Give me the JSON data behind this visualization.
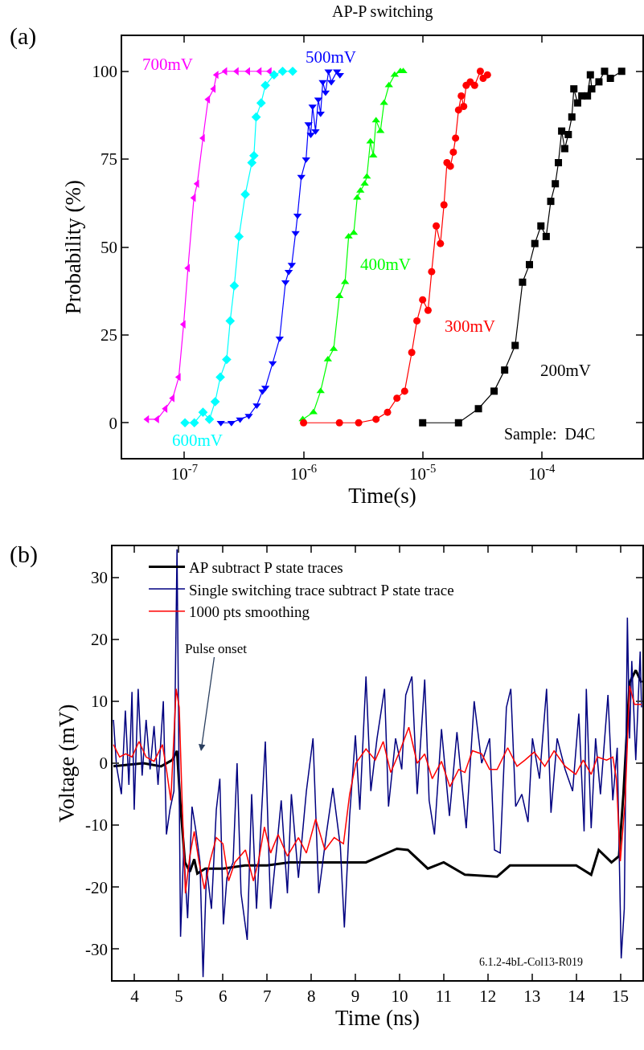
{
  "chart_data": [
    {
      "type": "line",
      "title": "AP-P switching",
      "xlabel": "Time(s)",
      "ylabel": "Probability (%)",
      "log": "x",
      "xlim": [
        3e-08,
        0.0007
      ],
      "ylim": [
        -10,
        110
      ],
      "xticks": [
        {
          "value": 1e-07,
          "label": "10$^{-7}$"
        },
        {
          "value": 1e-06,
          "label": "10$^{-6}$"
        },
        {
          "value": 1e-05,
          "label": "10$^{-5}$"
        },
        {
          "value": 0.0001,
          "label": "10$^{-4}$"
        }
      ],
      "yticks": [
        0,
        25,
        50,
        75,
        100
      ],
      "grid": false,
      "legend": false,
      "annotations": [
        "(a)",
        "Sample:  D4C"
      ],
      "series": [
        {
          "name": "700mV",
          "color": "#ff00ff",
          "marker": "triangle-left",
          "x": [
            4.86e-08,
            5.9e-08,
            6.93e-08,
            7.96e-08,
            8.96e-08,
            9.84e-08,
            1.07e-07,
            1.2e-07,
            1.28e-07,
            1.43e-07,
            1.58e-07,
            1.76e-07,
            1.86e-07,
            2.2e-07,
            2.75e-07,
            3.43e-07,
            4.28e-07,
            5.2e-07
          ],
          "values": [
            1,
            1,
            4,
            7,
            13,
            28,
            44,
            64,
            68,
            81,
            92,
            95,
            99,
            100,
            100,
            100,
            100,
            100
          ]
        },
        {
          "name": "600mV",
          "color": "#00ffff",
          "marker": "diamond",
          "x": [
            1.01e-07,
            1.21e-07,
            1.43e-07,
            1.62e-07,
            1.81e-07,
            2e-07,
            2.26e-07,
            2.42e-07,
            2.62e-07,
            2.87e-07,
            3.24e-07,
            3.68e-07,
            3.83e-07,
            4e-07,
            4.4e-07,
            4.78e-07,
            5.65e-07,
            6.67e-07,
            8.1e-07
          ],
          "values": [
            0,
            0,
            3,
            1,
            6,
            13,
            18,
            29,
            39,
            53,
            65,
            74,
            76,
            87,
            91,
            96,
            99,
            100,
            100
          ]
        },
        {
          "name": "500mV",
          "color": "#0000ff",
          "marker": "triangle-down",
          "x": [
            2.02e-07,
            2.48e-07,
            2.93e-07,
            3.47e-07,
            4.05e-07,
            4.52e-07,
            4.78e-07,
            5.5e-07,
            6.3e-07,
            7.05e-07,
            7.5e-07,
            7.96e-07,
            8.57e-07,
            8.9e-07,
            9.57e-07,
            1.05e-06,
            1.1e-06,
            1.15e-06,
            1.19e-06,
            1.26e-06,
            1.33e-06,
            1.39e-06,
            1.45e-06,
            1.53e-06,
            1.62e-06,
            1.71e-06,
            1.91e-06,
            2.02e-06
          ],
          "values": [
            0,
            0,
            1,
            2,
            5,
            9,
            10,
            17,
            24,
            40,
            43,
            45,
            54,
            59,
            70,
            75,
            85,
            82,
            90,
            83,
            92,
            88,
            97,
            94,
            100,
            97,
            100,
            99
          ]
        },
        {
          "name": "400mV",
          "color": "#00ff00",
          "marker": "triangle-up",
          "x": [
            9.84e-07,
            1.21e-06,
            1.39e-06,
            1.6e-06,
            1.79e-06,
            2e-06,
            2.23e-06,
            2.39e-06,
            2.64e-06,
            2.82e-06,
            3e-06,
            3.26e-06,
            3.4e-06,
            3.64e-06,
            3.85e-06,
            4.06e-06,
            4.42e-06,
            4.74e-06,
            5.21e-06,
            5.82e-06,
            6.5e-06,
            6.87e-06
          ],
          "values": [
            1,
            3,
            9,
            18,
            21,
            36,
            40,
            53,
            54,
            64,
            66,
            68,
            70,
            80,
            76,
            86,
            83,
            91,
            96,
            99,
            100,
            100
          ]
        },
        {
          "name": "300mV",
          "color": "#ff0000",
          "marker": "circle",
          "x": [
            1e-06,
            2e-06,
            2.9e-06,
            4.06e-06,
            5.07e-06,
            6.08e-06,
            7.06e-06,
            8.1e-06,
            8.95e-06,
            1e-05,
            1.11e-05,
            1.19e-05,
            1.3e-05,
            1.41e-05,
            1.51e-05,
            1.6e-05,
            1.71e-05,
            1.81e-05,
            1.89e-05,
            2e-05,
            2.11e-05,
            2.21e-05,
            2.32e-05,
            2.51e-05,
            2.73e-05,
            3.05e-05,
            3.22e-05,
            3.5e-05
          ],
          "values": [
            0,
            0,
            0,
            1,
            3,
            7,
            9,
            20,
            29,
            35,
            32,
            43,
            56,
            51,
            62,
            74,
            73,
            77,
            81,
            89,
            93,
            90,
            96,
            97,
            96,
            100,
            98,
            99
          ]
        },
        {
          "name": "200mV",
          "color": "#000000",
          "marker": "square",
          "x": [
            1e-05,
            2e-05,
            2.94e-05,
            3.98e-05,
            4.88e-05,
            5.98e-05,
            6.9e-05,
            7.88e-05,
            8.75e-05,
            9.84e-05,
            0.000109,
            0.000119,
            0.00013,
            0.000138,
            0.000147,
            0.000156,
            0.000167,
            0.000179,
            0.000186,
            0.0002,
            0.000217,
            0.000242,
            0.000256,
            0.000263,
            0.000302,
            0.000337,
            0.000377,
            0.000469
          ],
          "values": [
            0,
            0,
            4,
            9,
            15,
            22,
            40,
            45,
            51,
            56,
            53,
            63,
            68,
            74,
            83,
            78,
            82,
            87,
            95,
            91,
            93,
            93,
            99,
            95,
            97,
            100,
            98,
            100
          ]
        }
      ]
    },
    {
      "type": "line",
      "xlabel": "Time (ns)",
      "ylabel": "Voltage (mV)",
      "xlim": [
        3.5,
        15.5
      ],
      "ylim": [
        -35,
        35
      ],
      "xticks": [
        4,
        5,
        6,
        7,
        8,
        9,
        10,
        11,
        12,
        13,
        14,
        15
      ],
      "yticks": [
        -30,
        -20,
        -10,
        0,
        10,
        20,
        30
      ],
      "grid": false,
      "legend": "top left",
      "marker": "none",
      "annotations": [
        "(b)",
        "Pulse onset",
        "6.1.2-4bL-Col13-R019"
      ],
      "series": [
        {
          "name": "AP subtract P state traces",
          "color": "#000000",
          "x": [
            3.52,
            3.8,
            4.2,
            4.6,
            4.85,
            4.96,
            5.04,
            5.14,
            5.25,
            5.35,
            5.42,
            5.6,
            6.0,
            6.5,
            7.0,
            7.5,
            8.0,
            8.5,
            9.0,
            9.24,
            9.94,
            10.19,
            10.64,
            11.0,
            11.48,
            12.21,
            12.5,
            13.0,
            13.5,
            14.0,
            14.34,
            14.51,
            14.8,
            14.97,
            15.07,
            15.21,
            15.35,
            15.48
          ],
          "values": [
            -0.5,
            -0.3,
            0,
            -0.5,
            0.5,
            2,
            -7,
            -16,
            -17.5,
            -15.5,
            -17.8,
            -17,
            -17,
            -16.5,
            -16.5,
            -16,
            -16,
            -16,
            -16,
            -16,
            -13.8,
            -14,
            -17,
            -16,
            -18,
            -18.3,
            -16.5,
            -16.5,
            -16.5,
            -16.5,
            -18,
            -14,
            -16,
            -15,
            -5,
            13,
            15,
            13
          ]
        },
        {
          "name": "Single switching trace subtract P state trace",
          "color": "#000080",
          "x": [
            3.52,
            3.59,
            3.7,
            3.79,
            3.87,
            3.94,
            3.99,
            4.08,
            4.17,
            4.26,
            4.35,
            4.44,
            4.53,
            4.65,
            4.72,
            4.8,
            4.89,
            4.96,
            5.04,
            5.11,
            5.2,
            5.3,
            5.39,
            5.48,
            5.55,
            5.63,
            5.74,
            5.85,
            5.93,
            6.01,
            6.09,
            6.23,
            6.32,
            6.41,
            6.55,
            6.65,
            6.76,
            6.96,
            7.08,
            7.22,
            7.32,
            7.46,
            7.55,
            7.71,
            7.89,
            8.04,
            8.17,
            8.35,
            8.49,
            8.66,
            8.75,
            8.87,
            9.0,
            9.1,
            9.24,
            9.35,
            9.49,
            9.66,
            9.75,
            9.91,
            10.05,
            10.14,
            10.28,
            10.4,
            10.57,
            10.67,
            10.79,
            10.95,
            11.13,
            11.3,
            11.51,
            11.69,
            11.86,
            12.04,
            12.15,
            12.28,
            12.42,
            12.52,
            12.63,
            12.77,
            12.91,
            13.01,
            13.17,
            13.33,
            13.43,
            13.57,
            13.75,
            13.92,
            14.06,
            14.18,
            14.23,
            14.34,
            14.44,
            14.55,
            14.72,
            14.83,
            14.93,
            15.02,
            15.09,
            15.16,
            15.21,
            15.26,
            15.35,
            15.45,
            15.48
          ],
          "values": [
            7,
            -0.5,
            -5,
            8.5,
            -3.5,
            11.5,
            -7.5,
            12,
            -2,
            7,
            -1,
            6,
            -3.5,
            10,
            -11.5,
            -7.5,
            -4.5,
            34.5,
            -28,
            -14,
            -25,
            -7,
            -11,
            -16,
            -34.5,
            -17,
            -23.5,
            -7.5,
            -2.5,
            -26,
            -18.5,
            -16,
            0,
            -21,
            -28.5,
            -5,
            -23.5,
            3.5,
            -23.5,
            -13.5,
            -6,
            -21,
            -5,
            -18.5,
            -4.5,
            4,
            -21,
            -11,
            -4,
            -13.5,
            -26.5,
            -8.5,
            4.5,
            -7.5,
            14,
            -4.5,
            4,
            12,
            -7,
            4,
            -1,
            11,
            14,
            -5,
            13.5,
            -6,
            -11.5,
            5.5,
            -8.5,
            5,
            -10.5,
            10,
            0,
            4,
            -14,
            -14.5,
            9,
            12,
            -7,
            -5,
            -9.5,
            4,
            -2.5,
            12,
            -8,
            4,
            -1,
            -4.5,
            8,
            -11,
            12,
            -10.5,
            4,
            -5,
            11,
            -6,
            2.5,
            -31.5,
            -23.5,
            23.5,
            4,
            16.5,
            0.5,
            18,
            9
          ]
        },
        {
          "name": "1000 pts smoothing",
          "color": "#ff0000",
          "x": [
            3.52,
            3.66,
            3.8,
            3.94,
            4.1,
            4.26,
            4.44,
            4.63,
            4.72,
            4.82,
            4.94,
            5.01,
            5.07,
            5.15,
            5.25,
            5.35,
            5.46,
            5.58,
            5.7,
            5.85,
            6.0,
            6.13,
            6.27,
            6.51,
            6.69,
            6.8,
            6.94,
            7.08,
            7.25,
            7.46,
            7.71,
            7.89,
            8.1,
            8.31,
            8.52,
            8.73,
            8.87,
            9.01,
            9.24,
            9.45,
            9.63,
            9.8,
            10.01,
            10.21,
            10.4,
            10.57,
            10.74,
            10.95,
            11.14,
            11.34,
            11.48,
            11.65,
            11.86,
            12.04,
            12.21,
            12.45,
            12.66,
            12.84,
            13.05,
            13.29,
            13.5,
            13.75,
            13.99,
            14.16,
            14.34,
            14.48,
            14.69,
            14.83,
            14.91,
            15.0,
            15.11,
            15.21,
            15.32,
            15.48
          ],
          "values": [
            3,
            1,
            1.5,
            1,
            3.5,
            1,
            0.3,
            3,
            -1,
            -6,
            12,
            9,
            -5,
            -21,
            -15,
            -11,
            -16,
            -20.3,
            -16,
            -12,
            -13,
            -19,
            -16,
            -14,
            -19,
            -16,
            -10.3,
            -14.5,
            -11.5,
            -15,
            -12,
            -14.5,
            -9,
            -14,
            -12,
            -13,
            -5,
            0,
            2.3,
            0.5,
            3.5,
            -1.5,
            2,
            5.8,
            0,
            1.5,
            -2.5,
            0.3,
            -3.8,
            -1,
            -1.5,
            2,
            1.5,
            -1,
            -1,
            2.5,
            -0.5,
            0.5,
            1.8,
            -0.5,
            2,
            -0.5,
            -1.8,
            0.5,
            -1.8,
            1,
            0.5,
            1,
            -2.5,
            -15.8,
            -6,
            12.5,
            9.5,
            9.5
          ]
        }
      ]
    }
  ]
}
